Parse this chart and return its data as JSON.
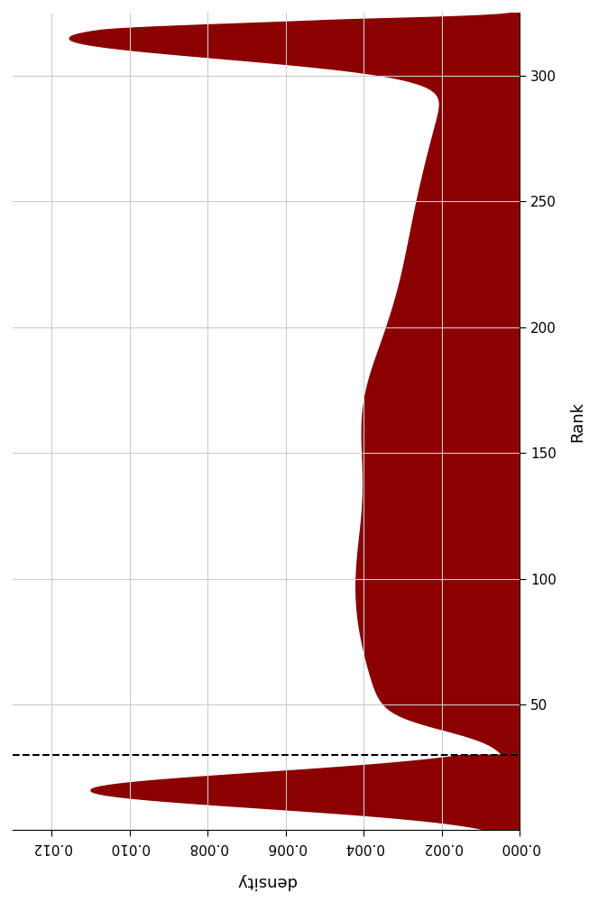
{
  "fill_color": "#8B0000",
  "fill_alpha": 1.0,
  "line_color": "#8B0000",
  "background_color": "#ffffff",
  "grid_color": "#cccccc",
  "dashed_line_rank": 30,
  "dashed_line_color": "black",
  "xlabel": "density",
  "ylabel": "Rank",
  "xlim": [
    0.0,
    0.013
  ],
  "ylim": [
    0,
    325
  ],
  "x_ticks": [
    0.0,
    0.002,
    0.004,
    0.006,
    0.008,
    0.01,
    0.012
  ],
  "y_ticks": [
    50,
    100,
    150,
    200,
    250,
    300
  ],
  "figsize": [
    6.63,
    10.0
  ],
  "dpi": 100
}
